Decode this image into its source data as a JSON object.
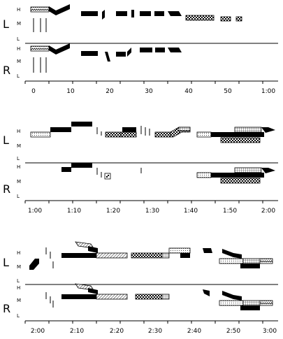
{
  "channel_labels": {
    "left": "L",
    "right": "R"
  },
  "level_labels": [
    "H",
    "M",
    "L"
  ],
  "panels": [
    {
      "ticks": [
        "0",
        "10",
        "20",
        "30",
        "40",
        "50",
        "1:00"
      ]
    },
    {
      "ticks": [
        "1:00",
        "1:10",
        "1:20",
        "1:30",
        "1:40",
        "1:50",
        "2:00"
      ]
    },
    {
      "ticks": [
        "2:00",
        "2:10",
        "2:20",
        "2:30",
        "2:40",
        "2:50",
        "3:00"
      ]
    }
  ],
  "fill_patterns": [
    "solid",
    "zigzag",
    "checker",
    "dots",
    "grid",
    "hatch"
  ]
}
